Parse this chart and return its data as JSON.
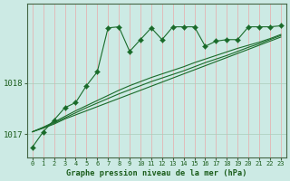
{
  "background_color": "#cceae4",
  "plot_bg_color": "#cceae4",
  "vgrid_color": "#e8aaaa",
  "hgrid_color": "#aaccbb",
  "line_color": "#1a6b2a",
  "text_color": "#1a5c1a",
  "xlabel": "Graphe pression niveau de la mer (hPa)",
  "yticks": [
    1017,
    1018
  ],
  "ylim": [
    1016.55,
    1019.55
  ],
  "xlim": [
    -0.5,
    23.5
  ],
  "xticks": [
    0,
    1,
    2,
    3,
    4,
    5,
    6,
    7,
    8,
    9,
    10,
    11,
    12,
    13,
    14,
    15,
    16,
    17,
    18,
    19,
    20,
    21,
    22,
    23
  ],
  "smooth_series": [
    [
      1017.05,
      1017.12,
      1017.2,
      1017.3,
      1017.38,
      1017.46,
      1017.54,
      1017.62,
      1017.7,
      1017.78,
      1017.86,
      1017.94,
      1018.02,
      1018.1,
      1018.18,
      1018.26,
      1018.34,
      1018.42,
      1018.5,
      1018.58,
      1018.66,
      1018.74,
      1018.82,
      1018.9
    ],
    [
      1017.05,
      1017.13,
      1017.22,
      1017.32,
      1017.42,
      1017.52,
      1017.61,
      1017.7,
      1017.79,
      1017.87,
      1017.95,
      1018.03,
      1018.1,
      1018.17,
      1018.24,
      1018.32,
      1018.4,
      1018.47,
      1018.54,
      1018.62,
      1018.7,
      1018.77,
      1018.85,
      1018.93
    ],
    [
      1017.05,
      1017.14,
      1017.24,
      1017.35,
      1017.46,
      1017.56,
      1017.66,
      1017.76,
      1017.86,
      1017.95,
      1018.03,
      1018.11,
      1018.18,
      1018.25,
      1018.32,
      1018.4,
      1018.47,
      1018.54,
      1018.61,
      1018.68,
      1018.74,
      1018.8,
      1018.87,
      1018.95
    ]
  ],
  "jagged_series": [
    1016.75,
    1017.05,
    1017.28,
    1017.52,
    1017.62,
    1017.95,
    1018.22,
    1019.08,
    1019.1,
    1018.62,
    1018.85,
    1019.08,
    1018.85,
    1019.1,
    1019.1,
    1019.1,
    1018.72,
    1018.82,
    1018.85,
    1018.85,
    1019.1,
    1019.1,
    1019.1,
    1019.12
  ]
}
